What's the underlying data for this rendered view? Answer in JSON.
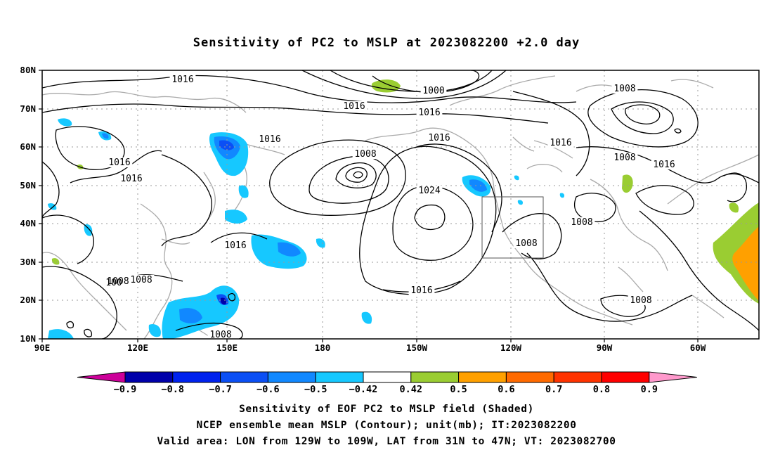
{
  "title": "Sensitivity of PC2 to MSLP at 2023082200 +2.0 day",
  "map": {
    "lat_labels": [
      "80N",
      "70N",
      "60N",
      "50N",
      "40N",
      "30N",
      "20N",
      "10N"
    ],
    "lon_labels": [
      "90E",
      "120E",
      "150E",
      "180",
      "150W",
      "120W",
      "90W",
      "60W"
    ],
    "contour_labels": [
      {
        "text": "1016"
      },
      {
        "text": "1000"
      },
      {
        "text": "1016"
      },
      {
        "text": "1016"
      },
      {
        "text": "1008"
      },
      {
        "text": "1016"
      },
      {
        "text": "1016"
      },
      {
        "text": "1016"
      },
      {
        "text": "1008"
      },
      {
        "text": "1016"
      },
      {
        "text": "1016"
      },
      {
        "text": "1024"
      },
      {
        "text": "1008"
      },
      {
        "text": "1016"
      },
      {
        "text": "1008"
      },
      {
        "text": "1008"
      },
      {
        "text": "1016"
      },
      {
        "text": "1008"
      },
      {
        "text": "1016"
      },
      {
        "text": "1008"
      },
      {
        "text": "1008"
      },
      {
        "text": "1008"
      },
      {
        "text": "100"
      }
    ],
    "valid_area_box": {
      "lon_from": "129W",
      "lon_to": "109W",
      "lat_from": "31N",
      "lat_to": "47N"
    }
  },
  "colorbar": {
    "colors": [
      "#cc0099",
      "#0000aa",
      "#0022ee",
      "#0b4ff5",
      "#1188ff",
      "#16c8ff",
      "#ffffff",
      "#9acd32",
      "#ffa000",
      "#ff6a00",
      "#ff3300",
      "#ff0000",
      "#ff99cc"
    ],
    "labels": [
      "-0.9",
      "-0.8",
      "-0.7",
      "-0.6",
      "-0.5",
      "-0.42",
      "0.42",
      "0.5",
      "0.6",
      "0.7",
      "0.8",
      "0.9"
    ]
  },
  "captions": {
    "line1": "Sensitivity of EOF PC2 to MSLP field (Shaded)",
    "line2": "NCEP ensemble mean MSLP (Contour); unit(mb); IT:2023082200",
    "line3": "Valid area: LON from 129W to 109W, LAT from 31N to 47N; VT: 2023082700"
  }
}
